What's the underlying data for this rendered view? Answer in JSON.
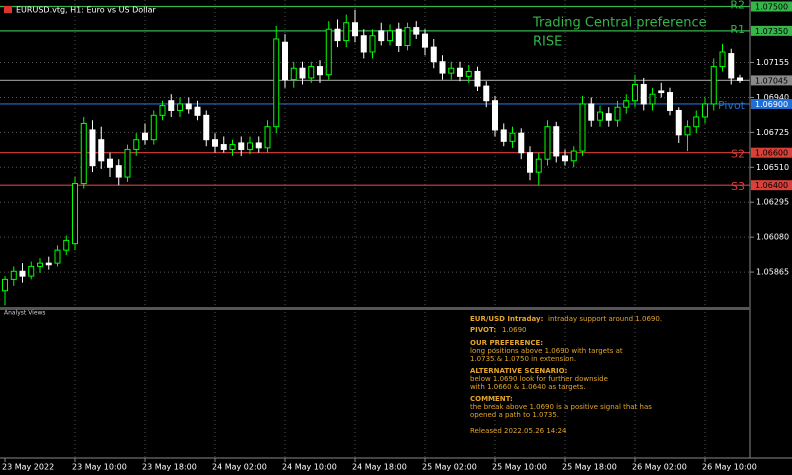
{
  "chart_data": {
    "type": "candlestick",
    "header": "EURUSD.vtg, H1:  Euro vs US Dollar",
    "annotations": [
      "Trading Central preference",
      "RISE"
    ],
    "bull_color": "#00ff00",
    "bear_color": "#ffffff",
    "categories": [
      "23 May 2022",
      null,
      null,
      null,
      null,
      null,
      null,
      null,
      "23 May 10:00",
      null,
      null,
      null,
      null,
      null,
      null,
      null,
      "23 May 18:00",
      null,
      null,
      null,
      null,
      null,
      null,
      null,
      "24 May 02:00",
      null,
      null,
      null,
      null,
      null,
      null,
      null,
      "24 May 10:00",
      null,
      null,
      null,
      null,
      null,
      null,
      null,
      "24 May 18:00",
      null,
      null,
      null,
      null,
      null,
      null,
      null,
      "25 May 02:00",
      null,
      null,
      null,
      null,
      null,
      null,
      null,
      "25 May 10:00",
      null,
      null,
      null,
      null,
      null,
      null,
      null,
      "25 May 18:00",
      null,
      null,
      null,
      null,
      null,
      null,
      null,
      "26 May 02:00",
      null,
      null,
      null,
      null,
      null,
      null,
      null,
      "26 May 10:00",
      null,
      null,
      null,
      null
    ],
    "open": [
      1.0575,
      1.0582,
      1.0587,
      1.0584,
      1.059,
      1.0592,
      1.0592,
      1.06,
      1.0604,
      1.0641,
      1.0674,
      1.0668,
      1.0656,
      1.0652,
      1.0645,
      1.0662,
      1.0672,
      1.0668,
      1.0683,
      1.0692,
      1.0686,
      1.069,
      1.0688,
      1.0683,
      1.0668,
      1.0665,
      1.0662,
      1.0666,
      1.0662,
      1.0666,
      1.0663,
      1.0676,
      1.0728,
      1.0705,
      1.0712,
      1.0706,
      1.0713,
      1.0708,
      1.0736,
      1.0729,
      1.074,
      1.0732,
      1.0722,
      1.0735,
      1.0729,
      1.0736,
      1.0726,
      1.0737,
      1.0733,
      1.0725,
      1.0716,
      1.0709,
      1.0712,
      1.0707,
      1.071,
      1.0701,
      1.0692,
      1.0674,
      1.0667,
      1.0672,
      1.066,
      1.0648,
      1.0656,
      1.0676,
      1.0658,
      1.0655,
      1.0661,
      1.069,
      1.068,
      1.0684,
      1.068,
      1.0688,
      1.0692,
      1.0702,
      1.069,
      1.0698,
      1.0697,
      1.0686,
      1.0671,
      1.0676,
      1.0682,
      1.069,
      1.0713,
      1.0721,
      1.0706
    ],
    "high": [
      1.0584,
      1.059,
      1.0592,
      1.0593,
      1.0595,
      1.0596,
      1.0603,
      1.0609,
      1.0645,
      1.0682,
      1.068,
      1.0676,
      1.066,
      1.0656,
      1.0665,
      1.0672,
      1.0678,
      1.0686,
      1.0692,
      1.0696,
      1.0694,
      1.0694,
      1.0692,
      1.0686,
      1.0672,
      1.067,
      1.0668,
      1.067,
      1.067,
      1.067,
      1.068,
      1.0738,
      1.0733,
      1.0716,
      1.0716,
      1.0716,
      1.0717,
      1.0741,
      1.0742,
      1.0745,
      1.0748,
      1.0736,
      1.0736,
      1.074,
      1.0739,
      1.074,
      1.074,
      1.0741,
      1.0736,
      1.073,
      1.072,
      1.0716,
      1.0716,
      1.0714,
      1.0713,
      1.0704,
      1.0695,
      1.0678,
      1.0676,
      1.0675,
      1.0664,
      1.066,
      1.068,
      1.0679,
      1.0662,
      1.0664,
      1.0695,
      1.0694,
      1.0689,
      1.0688,
      1.0692,
      1.0696,
      1.0708,
      1.0706,
      1.07,
      1.0703,
      1.07,
      1.0688,
      1.068,
      1.0686,
      1.0694,
      1.0718,
      1.0727,
      1.0724,
      1.0708
    ],
    "low": [
      1.0566,
      1.0578,
      1.058,
      1.0582,
      1.0586,
      1.0588,
      1.059,
      1.0597,
      1.06,
      1.0638,
      1.0648,
      1.065,
      1.0645,
      1.064,
      1.0642,
      1.0658,
      1.0665,
      1.0665,
      1.068,
      1.0682,
      1.0682,
      1.0684,
      1.068,
      1.0664,
      1.066,
      1.066,
      1.0658,
      1.0658,
      1.0659,
      1.066,
      1.066,
      1.0672,
      1.07,
      1.07,
      1.0702,
      1.0703,
      1.0703,
      1.0705,
      1.0725,
      1.0725,
      1.0728,
      1.0718,
      1.0718,
      1.0726,
      1.0726,
      1.0722,
      1.0723,
      1.073,
      1.072,
      1.0712,
      1.0705,
      1.0705,
      1.0704,
      1.0703,
      1.0698,
      1.0688,
      1.067,
      1.0664,
      1.0663,
      1.0656,
      1.0643,
      1.064,
      1.0652,
      1.0654,
      1.0652,
      1.0651,
      1.0658,
      1.0676,
      1.0676,
      1.0676,
      1.0676,
      1.0684,
      1.0688,
      1.0686,
      1.0686,
      1.0694,
      1.0683,
      1.0666,
      1.0661,
      1.0672,
      1.0678,
      1.0686,
      1.071,
      1.0702,
      1.0703
    ],
    "close": [
      1.0582,
      1.0587,
      1.0584,
      1.059,
      1.0592,
      1.0591,
      1.06,
      1.0606,
      1.0641,
      1.0678,
      1.0652,
      1.0655,
      1.0651,
      1.0645,
      1.0662,
      1.0668,
      1.0668,
      1.0683,
      1.0689,
      1.0686,
      1.069,
      1.0687,
      1.0683,
      1.0668,
      1.0664,
      1.0662,
      1.0665,
      1.0662,
      1.0666,
      1.0663,
      1.0676,
      1.073,
      1.0705,
      1.0712,
      1.0706,
      1.0713,
      1.0708,
      1.0736,
      1.0729,
      1.074,
      1.0732,
      1.0722,
      1.0732,
      1.0729,
      1.0735,
      1.0726,
      1.0737,
      1.0733,
      1.0725,
      1.0716,
      1.0709,
      1.0712,
      1.0707,
      1.071,
      1.0701,
      1.0692,
      1.0674,
      1.0667,
      1.0672,
      1.066,
      1.0648,
      1.0656,
      1.0676,
      1.0658,
      1.0655,
      1.0661,
      1.069,
      1.068,
      1.0685,
      1.068,
      1.0688,
      1.0692,
      1.0702,
      1.069,
      1.0696,
      1.0697,
      1.0686,
      1.0671,
      1.0676,
      1.0682,
      1.069,
      1.0713,
      1.0722,
      1.0706,
      1.07045
    ],
    "ylim": [
      1.0565,
      1.0754
    ],
    "yticks": [
      1.07155,
      {
        "value": 1.0694,
        "label": "1.06940"
      },
      1.06725,
      {
        "value": 1.0651,
        "label": "1.06510"
      },
      1.06295,
      {
        "value": 1.0608,
        "label": "1.06080"
      },
      1.05865
    ],
    "grid": true,
    "levels": [
      {
        "name": "R2",
        "price": {
          "value": 1.075,
          "label": "1.07500"
        },
        "color": "#35b54a"
      },
      {
        "name": "R1",
        "price": {
          "value": 1.0735,
          "label": "1.07350"
        },
        "color": "#35b54a"
      },
      {
        "price": {
          "value": 1.07045,
          "label": "1.07045"
        },
        "color": "#8a8a8a"
      },
      {
        "name": "Pivot",
        "price": {
          "value": 1.069,
          "label": "1.06900"
        },
        "color": "#1f6fd8"
      },
      {
        "name": "S2",
        "price": {
          "value": 1.066,
          "label": "1.06600"
        },
        "color": "#d8403a"
      },
      {
        "name": "S3",
        "price": {
          "value": 1.064,
          "label": "1.06400"
        },
        "color": "#d8403a"
      }
    ]
  },
  "analyst_panel": {
    "title": "Analyst Views",
    "headline": {
      "label": "EUR/USD Intraday:",
      "text": "intraday support around 1.0690."
    },
    "pivot": {
      "label": "PIVOT:",
      "text": "1.0690"
    },
    "sections": [
      {
        "heading": "OUR PREFERENCE:",
        "lines": [
          "long positions above 1.0690 with targets at",
          "1.0735 & 1.0750 in extension."
        ]
      },
      {
        "heading": "ALTERNATIVE SCENARIO:",
        "lines": [
          "below 1.0690 look for further downside",
          "with 1.0660 & 1.0640 as targets."
        ]
      },
      {
        "heading": "COMMENT:",
        "lines": [
          "the break above 1.0690 is a positive signal that has",
          "opened a path to 1.0735."
        ]
      }
    ],
    "released": "Released 2022.05.26 14:24"
  }
}
